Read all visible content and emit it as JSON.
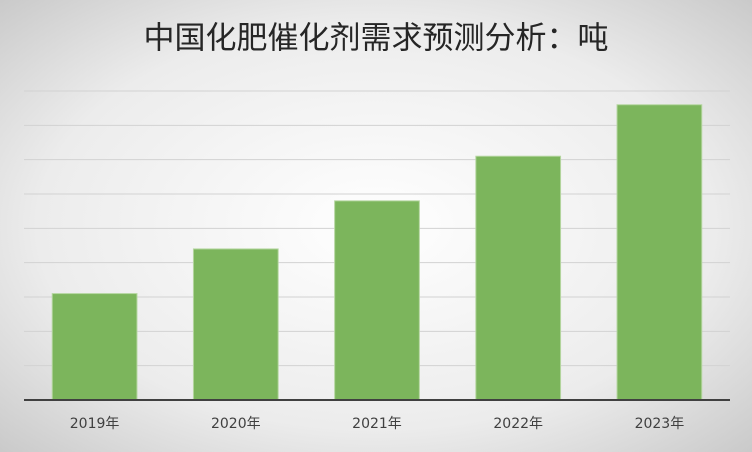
{
  "chart_data": {
    "type": "bar",
    "title": "中国化肥催化剂需求预测分析：吨",
    "categories": [
      "2019年",
      "2020年",
      "2021年",
      "2022年",
      "2023年"
    ],
    "values": [
      3.1,
      4.4,
      5.8,
      7.1,
      8.6
    ],
    "color": "#7cb55c",
    "ylim": [
      0,
      9
    ],
    "yticks": [
      0,
      1,
      2,
      3,
      4,
      5,
      6,
      7,
      8,
      9
    ],
    "grid": true
  }
}
